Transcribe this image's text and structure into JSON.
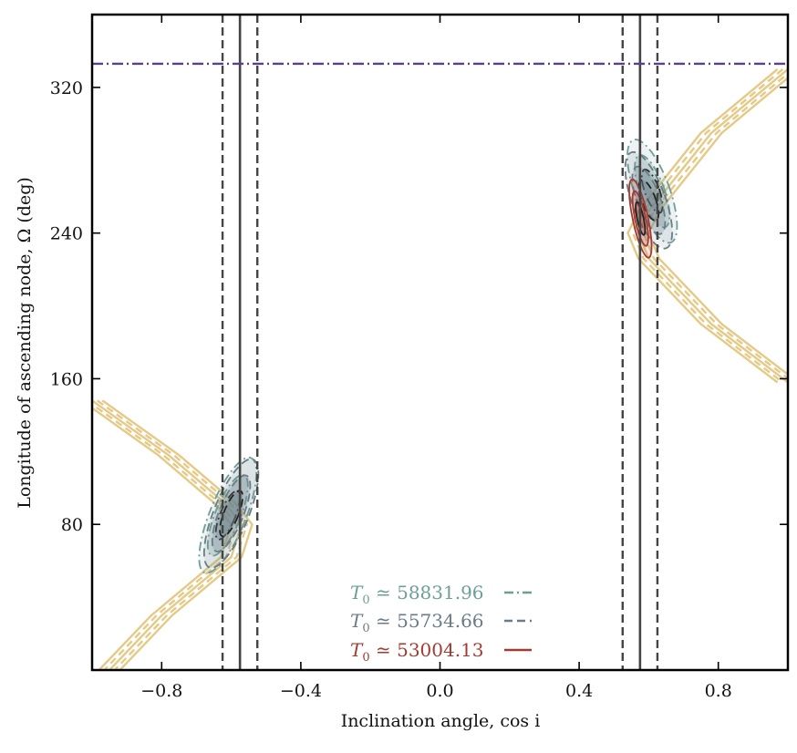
{
  "chart_data": {
    "type": "contour",
    "xlabel": "Inclination angle, cos i",
    "ylabel": "Longitude of ascending node, Ω (deg)",
    "xlim": [
      -1.0,
      1.0
    ],
    "ylim": [
      0,
      360
    ],
    "xticks": [
      -0.8,
      -0.4,
      0.0,
      0.4,
      0.8
    ],
    "xtick_labels": [
      "−0.8",
      "−0.4",
      "0.0",
      "0.4",
      "0.8"
    ],
    "yticks": [
      80,
      160,
      240,
      320
    ],
    "ytick_labels": [
      "80",
      "160",
      "240",
      "320"
    ],
    "grid": false,
    "legend_position": "bottom-center",
    "colors": {
      "band": "#e2c47a",
      "c58831": "#6e9e98",
      "c55734": "#6b7b88",
      "c53004": "#a33b32",
      "ref": "#444444",
      "hline": "#5b3f8f"
    },
    "reference_lines": {
      "vertical_solid": [
        -0.575,
        0.575
      ],
      "vertical_dashed": [
        -0.625,
        -0.525,
        0.525,
        0.625
      ],
      "horizontal_dashdot": 333
    },
    "series": [
      {
        "name": "T0 ≃ 58831.96",
        "label_main": "T",
        "label_sub": "0",
        "label_rest": " ≃ 58831.96",
        "color": "#6e9e98",
        "style": "dashdot",
        "regions": [
          {
            "center": [
              -0.61,
              85
            ],
            "half_width": [
              0.052,
              34
            ],
            "tilt": 0.55
          },
          {
            "center": [
              0.61,
              263
            ],
            "half_width": [
              0.05,
              30
            ],
            "tilt": 0.5
          }
        ]
      },
      {
        "name": "T0 ≃ 55734.66",
        "label_main": "T",
        "label_sub": "0",
        "label_rest": " ≃ 55734.66",
        "color": "#6b7b88",
        "style": "dashed",
        "regions": [
          {
            "center": [
              -0.6,
              86
            ],
            "half_width": [
              0.05,
              32
            ],
            "tilt": 0.55
          },
          {
            "center": [
              0.6,
              258
            ],
            "half_width": [
              0.048,
              28
            ],
            "tilt": 0.5
          }
        ]
      },
      {
        "name": "T0 ≃ 53004.13",
        "label_main": "T",
        "label_sub": "0",
        "label_rest": " ≃ 53004.13",
        "color": "#a33b32",
        "style": "solid",
        "regions": [
          {
            "center": [
              0.576,
              248
            ],
            "half_width": [
              0.022,
              22
            ],
            "tilt": 0.3
          }
        ]
      }
    ],
    "band": {
      "color": "#e2c47a",
      "description_points_right": [
        [
          1.0,
          330
        ],
        [
          0.78,
          295
        ],
        [
          0.6,
          252
        ],
        [
          0.57,
          240
        ],
        [
          0.6,
          226
        ],
        [
          0.78,
          190
        ],
        [
          1.0,
          158
        ]
      ],
      "description_points_left": [
        [
          -1.0,
          148
        ],
        [
          -0.78,
          118
        ],
        [
          -0.62,
          92
        ],
        [
          -0.57,
          80
        ],
        [
          -0.6,
          62
        ],
        [
          -0.8,
          30
        ],
        [
          -0.95,
          0
        ]
      ]
    }
  }
}
